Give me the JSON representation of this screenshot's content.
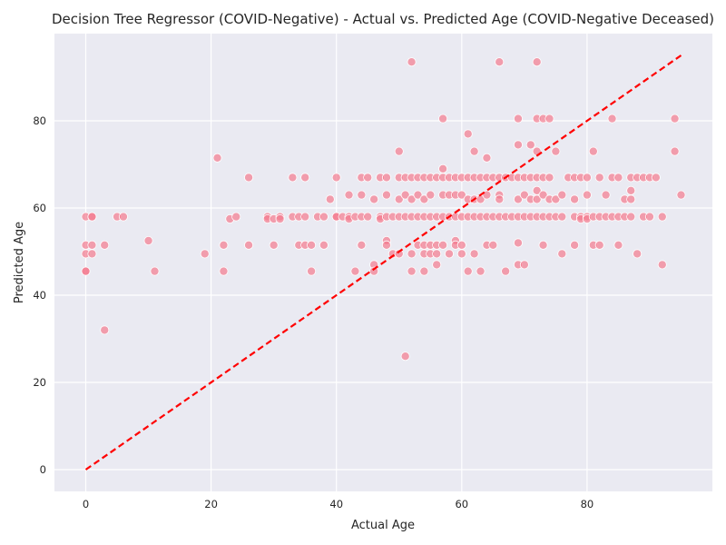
{
  "chart_data": {
    "type": "scatter",
    "title": "Decision Tree Regressor (COVID-Negative) - Actual vs. Predicted Age (COVID-Negative Deceased)",
    "xlabel": "Actual Age",
    "ylabel": "Predicted Age",
    "xlim": [
      -5,
      100
    ],
    "ylim": [
      -5,
      100
    ],
    "xticks": [
      0,
      20,
      40,
      60,
      80
    ],
    "yticks": [
      0,
      20,
      40,
      60,
      80
    ],
    "grid": true,
    "background": "#EAEAF2",
    "point_color": "#F37B8E",
    "reference_line": {
      "x": [
        0,
        95
      ],
      "y": [
        0,
        95
      ],
      "style": "dashed",
      "color": "#FF0000"
    },
    "points": [
      [
        0,
        58
      ],
      [
        0,
        51.5
      ],
      [
        0,
        49.5
      ],
      [
        0,
        45.5
      ],
      [
        0,
        45.5
      ],
      [
        1,
        58
      ],
      [
        1,
        58
      ],
      [
        1,
        51.5
      ],
      [
        1,
        49.5
      ],
      [
        3,
        51.5
      ],
      [
        3,
        32
      ],
      [
        5,
        58
      ],
      [
        6,
        58
      ],
      [
        10,
        52.5
      ],
      [
        11,
        45.5
      ],
      [
        19,
        49.5
      ],
      [
        21,
        71.5
      ],
      [
        22,
        51.5
      ],
      [
        22,
        45.5
      ],
      [
        23,
        57.5
      ],
      [
        24,
        58
      ],
      [
        26,
        67
      ],
      [
        26,
        51.5
      ],
      [
        29,
        58
      ],
      [
        29,
        57.5
      ],
      [
        30,
        57.5
      ],
      [
        30,
        51.5
      ],
      [
        31,
        58
      ],
      [
        31,
        57.5
      ],
      [
        33,
        67
      ],
      [
        33,
        58
      ],
      [
        34,
        58
      ],
      [
        34,
        51.5
      ],
      [
        35,
        67
      ],
      [
        35,
        58
      ],
      [
        35,
        51.5
      ],
      [
        36,
        51.5
      ],
      [
        36,
        45.5
      ],
      [
        37,
        58
      ],
      [
        38,
        58
      ],
      [
        38,
        51.5
      ],
      [
        39,
        62
      ],
      [
        40,
        67
      ],
      [
        40,
        58
      ],
      [
        40,
        58
      ],
      [
        41,
        58
      ],
      [
        42,
        63
      ],
      [
        42,
        58
      ],
      [
        42,
        57.5
      ],
      [
        43,
        58
      ],
      [
        43,
        45.5
      ],
      [
        44,
        67
      ],
      [
        44,
        63
      ],
      [
        44,
        58
      ],
      [
        44,
        51.5
      ],
      [
        45,
        67
      ],
      [
        45,
        58
      ],
      [
        46,
        62
      ],
      [
        46,
        47
      ],
      [
        46,
        45.5
      ],
      [
        47,
        67
      ],
      [
        47,
        58
      ],
      [
        47,
        57.5
      ],
      [
        48,
        67
      ],
      [
        48,
        63
      ],
      [
        48,
        58
      ],
      [
        48,
        52.5
      ],
      [
        48,
        51.5
      ],
      [
        49,
        58
      ],
      [
        49,
        49.5
      ],
      [
        50,
        73
      ],
      [
        50,
        67
      ],
      [
        50,
        62
      ],
      [
        50,
        58
      ],
      [
        50,
        49.5
      ],
      [
        51,
        67
      ],
      [
        51,
        63
      ],
      [
        51,
        58
      ],
      [
        51,
        26
      ],
      [
        52,
        93.5
      ],
      [
        52,
        67
      ],
      [
        52,
        62
      ],
      [
        52,
        58
      ],
      [
        52,
        49.5
      ],
      [
        52,
        45.5
      ],
      [
        53,
        67
      ],
      [
        53,
        63
      ],
      [
        53,
        58
      ],
      [
        53,
        51.5
      ],
      [
        54,
        67
      ],
      [
        54,
        62
      ],
      [
        54,
        58
      ],
      [
        54,
        51.5
      ],
      [
        54,
        49.5
      ],
      [
        54,
        45.5
      ],
      [
        55,
        67
      ],
      [
        55,
        63
      ],
      [
        55,
        58
      ],
      [
        55,
        51.5
      ],
      [
        55,
        49.5
      ],
      [
        56,
        67
      ],
      [
        56,
        58
      ],
      [
        56,
        51.5
      ],
      [
        56,
        49.5
      ],
      [
        56,
        47
      ],
      [
        57,
        80.5
      ],
      [
        57,
        69
      ],
      [
        57,
        67
      ],
      [
        57,
        63
      ],
      [
        57,
        58
      ],
      [
        57,
        51.5
      ],
      [
        58,
        67
      ],
      [
        58,
        63
      ],
      [
        58,
        58
      ],
      [
        58,
        49.5
      ],
      [
        59,
        67
      ],
      [
        59,
        63
      ],
      [
        59,
        58
      ],
      [
        59,
        52.5
      ],
      [
        59,
        51.5
      ],
      [
        60,
        67
      ],
      [
        60,
        63
      ],
      [
        60,
        58
      ],
      [
        60,
        51.5
      ],
      [
        60,
        49.5
      ],
      [
        61,
        77
      ],
      [
        61,
        67
      ],
      [
        61,
        62
      ],
      [
        61,
        58
      ],
      [
        61,
        45.5
      ],
      [
        62,
        73
      ],
      [
        62,
        67
      ],
      [
        62,
        62
      ],
      [
        62,
        58
      ],
      [
        62,
        49.5
      ],
      [
        63,
        67
      ],
      [
        63,
        62
      ],
      [
        63,
        58
      ],
      [
        63,
        45.5
      ],
      [
        64,
        71.5
      ],
      [
        64,
        67
      ],
      [
        64,
        63
      ],
      [
        64,
        58
      ],
      [
        64,
        51.5
      ],
      [
        65,
        67
      ],
      [
        65,
        58
      ],
      [
        65,
        51.5
      ],
      [
        66,
        93.5
      ],
      [
        66,
        67
      ],
      [
        66,
        63
      ],
      [
        66,
        62
      ],
      [
        66,
        58
      ],
      [
        67,
        67
      ],
      [
        67,
        58
      ],
      [
        67,
        45.5
      ],
      [
        68,
        67
      ],
      [
        68,
        58
      ],
      [
        69,
        80.5
      ],
      [
        69,
        74.5
      ],
      [
        69,
        67
      ],
      [
        69,
        62
      ],
      [
        69,
        58
      ],
      [
        69,
        52
      ],
      [
        69,
        47
      ],
      [
        70,
        67
      ],
      [
        70,
        63
      ],
      [
        70,
        58
      ],
      [
        70,
        47
      ],
      [
        71,
        74.5
      ],
      [
        71,
        67
      ],
      [
        71,
        62
      ],
      [
        71,
        58
      ],
      [
        72,
        93.5
      ],
      [
        72,
        80.5
      ],
      [
        72,
        73
      ],
      [
        72,
        67
      ],
      [
        72,
        64
      ],
      [
        72,
        62
      ],
      [
        72,
        58
      ],
      [
        73,
        80.5
      ],
      [
        73,
        67
      ],
      [
        73,
        63
      ],
      [
        73,
        58
      ],
      [
        73,
        51.5
      ],
      [
        74,
        80.5
      ],
      [
        74,
        67
      ],
      [
        74,
        62
      ],
      [
        74,
        58
      ],
      [
        75,
        73
      ],
      [
        75,
        62
      ],
      [
        75,
        58
      ],
      [
        76,
        63
      ],
      [
        76,
        58
      ],
      [
        76,
        49.5
      ],
      [
        77,
        67
      ],
      [
        78,
        67
      ],
      [
        78,
        62
      ],
      [
        78,
        58
      ],
      [
        78,
        51.5
      ],
      [
        79,
        67
      ],
      [
        79,
        58
      ],
      [
        79,
        57.5
      ],
      [
        80,
        67
      ],
      [
        80,
        63
      ],
      [
        80,
        58
      ],
      [
        80,
        57.5
      ],
      [
        81,
        73
      ],
      [
        81,
        58
      ],
      [
        81,
        51.5
      ],
      [
        82,
        67
      ],
      [
        82,
        58
      ],
      [
        82,
        51.5
      ],
      [
        83,
        63
      ],
      [
        83,
        58
      ],
      [
        84,
        80.5
      ],
      [
        84,
        67
      ],
      [
        84,
        58
      ],
      [
        85,
        67
      ],
      [
        85,
        58
      ],
      [
        85,
        51.5
      ],
      [
        86,
        62
      ],
      [
        86,
        58
      ],
      [
        87,
        67
      ],
      [
        87,
        64
      ],
      [
        87,
        62
      ],
      [
        87,
        58
      ],
      [
        88,
        67
      ],
      [
        88,
        49.5
      ],
      [
        89,
        67
      ],
      [
        89,
        58
      ],
      [
        90,
        67
      ],
      [
        90,
        58
      ],
      [
        91,
        67
      ],
      [
        92,
        58
      ],
      [
        92,
        47
      ],
      [
        94,
        80.5
      ],
      [
        94,
        73
      ],
      [
        95,
        63
      ]
    ]
  }
}
